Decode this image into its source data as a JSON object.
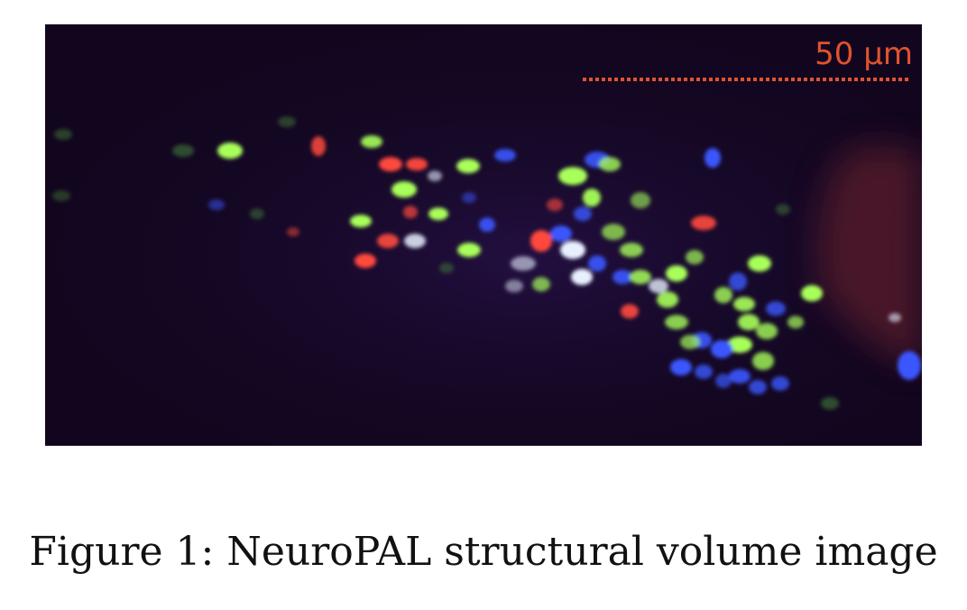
{
  "figure": {
    "scale_bar_label": "50 µm",
    "scale_bar_color": "#e0532e",
    "background_color": "#12061f",
    "channel_colors": {
      "red": "#ff4a3d",
      "green": "#a8ff5a",
      "blue": "#3b57ff",
      "white": "#e8f0ff",
      "dim_green": "#3f7a38"
    }
  },
  "caption": "Figure 1: NeuroPAL structural volume image"
}
